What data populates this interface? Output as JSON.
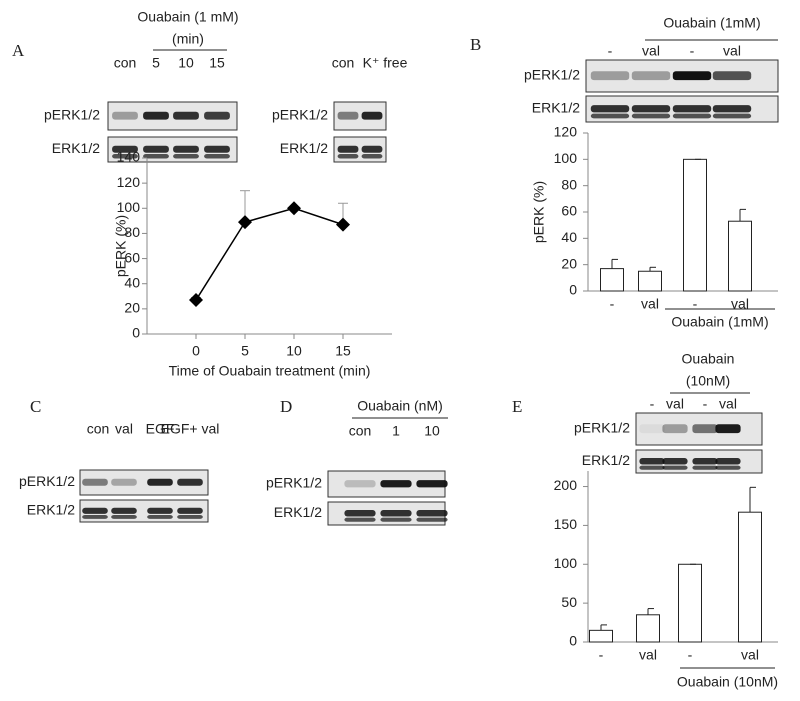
{
  "panel_labels": [
    "A",
    "B",
    "C",
    "D",
    "E"
  ],
  "blots": [
    {
      "header": [
        "Ouabain (1 mM)",
        "(min)"
      ],
      "lanes": [
        "con",
        "5",
        "10",
        "15"
      ],
      "rows": [
        "pERK1/2",
        "ERK1/2"
      ]
    },
    {
      "lanes": [
        "con",
        "K⁺ free"
      ],
      "rows": [
        "pERK1/2",
        "ERK1/2"
      ]
    },
    {
      "header": [
        "Ouabain  (1mM)"
      ],
      "lanes": [
        "-",
        "val",
        "-",
        "val"
      ],
      "rows": [
        "pERK1/2",
        "ERK1/2"
      ]
    },
    {
      "lanes": [
        "con",
        "val",
        "EGF",
        "EGF+ val"
      ],
      "rows": [
        "pERK1/2",
        "ERK1/2"
      ]
    },
    {
      "header": [
        "Ouabain (nM)"
      ],
      "lanes": [
        "con",
        "1",
        "10"
      ],
      "rows": [
        "pERK1/2",
        "ERK1/2"
      ]
    },
    {
      "header": [
        "Ouabain",
        "(10nM)"
      ],
      "lanes": [
        "-",
        "val",
        "-",
        "val"
      ],
      "rows": [
        "pERK1/2",
        "ERK1/2"
      ]
    }
  ],
  "chart_data": [
    {
      "type": "line",
      "x": [
        0,
        5,
        10,
        15
      ],
      "values": [
        27,
        89,
        100,
        87
      ],
      "errors": [
        2,
        25,
        0,
        17
      ],
      "xlim": [
        -5,
        20
      ],
      "xticks": [
        0,
        5,
        10,
        15
      ],
      "ylim": [
        0,
        140
      ],
      "yticks": [
        0,
        20,
        40,
        60,
        80,
        100,
        120,
        140
      ],
      "x_label": "Time of Ouabain treatment (min)",
      "y_label": "pERK (%)",
      "color": "#000000"
    },
    {
      "type": "bar",
      "categories": [
        "-",
        "val",
        "-",
        "val"
      ],
      "values": [
        17,
        15,
        100,
        53
      ],
      "errors": [
        7,
        3,
        0,
        9
      ],
      "ylim": [
        0,
        120
      ],
      "yticks": [
        0,
        20,
        40,
        60,
        80,
        100,
        120
      ],
      "y_label": "pERK (%)",
      "group_label": "Ouabain (1mM)",
      "color": "#ffffff"
    },
    {
      "type": "bar",
      "categories": [
        "-",
        "val",
        "-",
        "val"
      ],
      "values": [
        15,
        35,
        100,
        167
      ],
      "errors": [
        7,
        8,
        0,
        32
      ],
      "ylim": [
        0,
        220
      ],
      "yticks": [
        0,
        50,
        100,
        150,
        200
      ],
      "group_label": "Ouabain (10nM)",
      "color": "#ffffff"
    }
  ]
}
